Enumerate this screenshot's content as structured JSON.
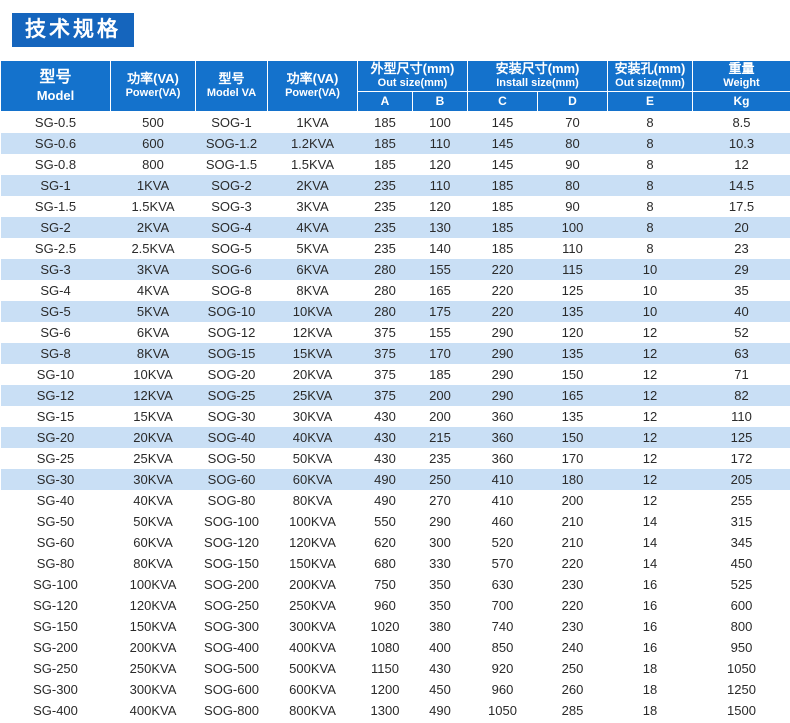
{
  "page": {
    "title_badge": "技术规格"
  },
  "colors": {
    "badge_bg": "#1565bd",
    "header_bg": "#1472cc",
    "stripe_bg": "#c9dff5",
    "header_text": "#ffffff",
    "body_text": "#2a2a2a"
  },
  "table": {
    "columns": [
      {
        "zh": "型号",
        "en": "Model"
      },
      {
        "zh": "功率(VA)",
        "en": "Power(VA)"
      },
      {
        "zh": "型号",
        "en": "Model VA"
      },
      {
        "zh": "功率(VA)",
        "en": "Power(VA)"
      }
    ],
    "groups": [
      {
        "zh": "外型尺寸(mm)",
        "en": "Out size(mm)",
        "subs": [
          "A",
          "B"
        ]
      },
      {
        "zh": "安装尺寸(mm)",
        "en": "Install size(mm)",
        "subs": [
          "C",
          "D"
        ]
      },
      {
        "zh": "安装孔(mm)",
        "en": "Out size(mm)",
        "subs": [
          "E"
        ]
      },
      {
        "zh": "重量",
        "en": "Weight",
        "subs": [
          "Kg"
        ]
      }
    ],
    "rows": [
      [
        "SG-0.5",
        "500",
        "SOG-1",
        "1KVA",
        "185",
        "100",
        "145",
        "70",
        "8",
        "8.5"
      ],
      [
        "SG-0.6",
        "600",
        "SOG-1.2",
        "1.2KVA",
        "185",
        "110",
        "145",
        "80",
        "8",
        "10.3"
      ],
      [
        "SG-0.8",
        "800",
        "SOG-1.5",
        "1.5KVA",
        "185",
        "120",
        "145",
        "90",
        "8",
        "12"
      ],
      [
        "SG-1",
        "1KVA",
        "SOG-2",
        "2KVA",
        "235",
        "110",
        "185",
        "80",
        "8",
        "14.5"
      ],
      [
        "SG-1.5",
        "1.5KVA",
        "SOG-3",
        "3KVA",
        "235",
        "120",
        "185",
        "90",
        "8",
        "17.5"
      ],
      [
        "SG-2",
        "2KVA",
        "SOG-4",
        "4KVA",
        "235",
        "130",
        "185",
        "100",
        "8",
        "20"
      ],
      [
        "SG-2.5",
        "2.5KVA",
        "SOG-5",
        "5KVA",
        "235",
        "140",
        "185",
        "110",
        "8",
        "23"
      ],
      [
        "SG-3",
        "3KVA",
        "SOG-6",
        "6KVA",
        "280",
        "155",
        "220",
        "115",
        "10",
        "29"
      ],
      [
        "SG-4",
        "4KVA",
        "SOG-8",
        "8KVA",
        "280",
        "165",
        "220",
        "125",
        "10",
        "35"
      ],
      [
        "SG-5",
        "5KVA",
        "SOG-10",
        "10KVA",
        "280",
        "175",
        "220",
        "135",
        "10",
        "40"
      ],
      [
        "SG-6",
        "6KVA",
        "SOG-12",
        "12KVA",
        "375",
        "155",
        "290",
        "120",
        "12",
        "52"
      ],
      [
        "SG-8",
        "8KVA",
        "SOG-15",
        "15KVA",
        "375",
        "170",
        "290",
        "135",
        "12",
        "63"
      ],
      [
        "SG-10",
        "10KVA",
        "SOG-20",
        "20KVA",
        "375",
        "185",
        "290",
        "150",
        "12",
        "71"
      ],
      [
        "SG-12",
        "12KVA",
        "SOG-25",
        "25KVA",
        "375",
        "200",
        "290",
        "165",
        "12",
        "82"
      ],
      [
        "SG-15",
        "15KVA",
        "SOG-30",
        "30KVA",
        "430",
        "200",
        "360",
        "135",
        "12",
        "110"
      ],
      [
        "SG-20",
        "20KVA",
        "SOG-40",
        "40KVA",
        "430",
        "215",
        "360",
        "150",
        "12",
        "125"
      ],
      [
        "SG-25",
        "25KVA",
        "SOG-50",
        "50KVA",
        "430",
        "235",
        "360",
        "170",
        "12",
        "172"
      ],
      [
        "SG-30",
        "30KVA",
        "SOG-60",
        "60KVA",
        "490",
        "250",
        "410",
        "180",
        "12",
        "205"
      ],
      [
        "SG-40",
        "40KVA",
        "SOG-80",
        "80KVA",
        "490",
        "270",
        "410",
        "200",
        "12",
        "255"
      ],
      [
        "SG-50",
        "50KVA",
        "SOG-100",
        "100KVA",
        "550",
        "290",
        "460",
        "210",
        "14",
        "315"
      ],
      [
        "SG-60",
        "60KVA",
        "SOG-120",
        "120KVA",
        "620",
        "300",
        "520",
        "210",
        "14",
        "345"
      ],
      [
        "SG-80",
        "80KVA",
        "SOG-150",
        "150KVA",
        "680",
        "330",
        "570",
        "220",
        "14",
        "450"
      ],
      [
        "SG-100",
        "100KVA",
        "SOG-200",
        "200KVA",
        "750",
        "350",
        "630",
        "230",
        "16",
        "525"
      ],
      [
        "SG-120",
        "120KVA",
        "SOG-250",
        "250KVA",
        "960",
        "350",
        "700",
        "220",
        "16",
        "600"
      ],
      [
        "SG-150",
        "150KVA",
        "SOG-300",
        "300KVA",
        "1020",
        "380",
        "740",
        "230",
        "16",
        "800"
      ],
      [
        "SG-200",
        "200KVA",
        "SOG-400",
        "400KVA",
        "1080",
        "400",
        "850",
        "240",
        "16",
        "950"
      ],
      [
        "SG-250",
        "250KVA",
        "SOG-500",
        "500KVA",
        "1150",
        "430",
        "920",
        "250",
        "18",
        "1050"
      ],
      [
        "SG-300",
        "300KVA",
        "SOG-600",
        "600KVA",
        "1200",
        "450",
        "960",
        "260",
        "18",
        "1250"
      ],
      [
        "SG-400",
        "400KVA",
        "SOG-800",
        "800KVA",
        "1300",
        "490",
        "1050",
        "285",
        "18",
        "1500"
      ]
    ]
  }
}
